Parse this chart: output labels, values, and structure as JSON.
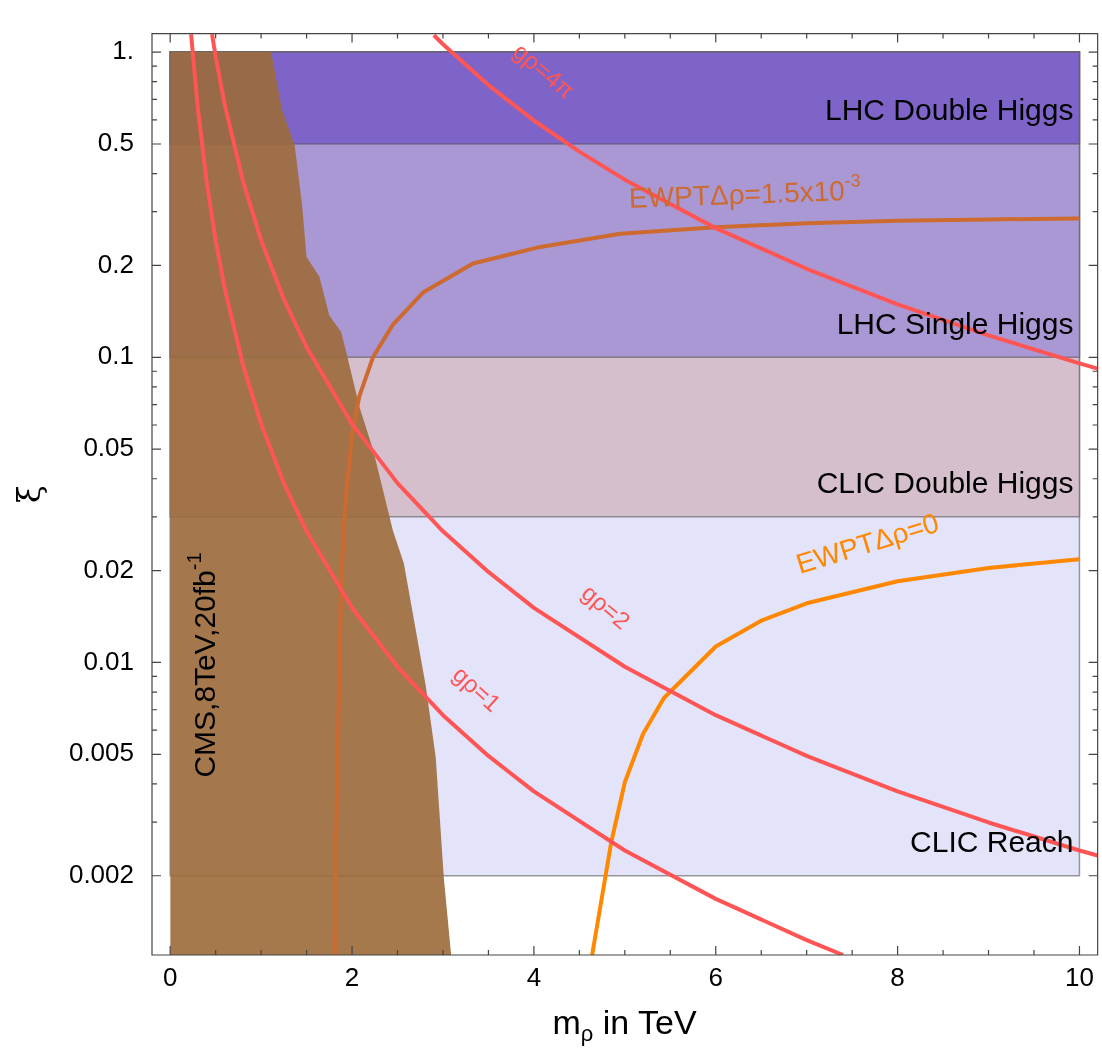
{
  "chart_data": {
    "type": "line",
    "xlabel": "m$_{ρ}$ in TeV",
    "ylabel": "ξ",
    "log": true,
    "marker": "none",
    "xlim": [
      -0.2,
      10.2
    ],
    "ylim": [
      0.0011,
      1.15
    ],
    "xticks": [
      0,
      {
        "value": 0.5,
        "label": null
      },
      {
        "value": 1,
        "label": null
      },
      {
        "value": 1.5,
        "label": null
      },
      2,
      {
        "value": 2.5,
        "label": null
      },
      {
        "value": 3,
        "label": null
      },
      {
        "value": 3.5,
        "label": null
      },
      4,
      {
        "value": 4.5,
        "label": null
      },
      {
        "value": 5,
        "label": null
      },
      {
        "value": 5.5,
        "label": null
      },
      6,
      {
        "value": 6.5,
        "label": null
      },
      {
        "value": 7,
        "label": null
      },
      {
        "value": 7.5,
        "label": null
      },
      8,
      {
        "value": 8.5,
        "label": null
      },
      {
        "value": 9,
        "label": null
      },
      {
        "value": 9.5,
        "label": null
      },
      10
    ],
    "yticks": [
      0.002,
      {
        "value": 0.003,
        "label": null
      },
      {
        "value": 0.004,
        "label": null
      },
      0.005,
      {
        "value": 0.006,
        "label": null
      },
      {
        "value": 0.007,
        "label": null
      },
      {
        "value": 0.008,
        "label": null
      },
      {
        "value": 0.009,
        "label": null
      },
      0.01,
      0.02,
      {
        "value": 0.03,
        "label": null
      },
      {
        "value": 0.04,
        "label": null
      },
      0.05,
      {
        "value": 0.06,
        "label": null
      },
      {
        "value": 0.07,
        "label": null
      },
      {
        "value": 0.08,
        "label": null
      },
      {
        "value": 0.09,
        "label": null
      },
      0.1,
      0.2,
      {
        "value": 0.3,
        "label": null
      },
      {
        "value": 0.4,
        "label": null
      },
      0.5,
      {
        "value": 0.6,
        "label": null
      },
      {
        "value": 0.7,
        "label": null
      },
      {
        "value": 0.8,
        "label": null
      },
      {
        "value": 0.9,
        "label": null
      },
      {
        "value": 1,
        "label": "1."
      }
    ],
    "bands": [
      {
        "axis": "y",
        "from": 0.002,
        "to": 1,
        "label": "CLIC Reach",
        "color": "#e3e3fa"
      },
      {
        "axis": "y",
        "from": 0.03,
        "to": 1,
        "label": "CLIC Double Higgs",
        "color": "#d6bfcc"
      },
      {
        "axis": "y",
        "from": 0.1,
        "to": 1,
        "label": "LHC Single Higgs",
        "color": "#aa98d4"
      },
      {
        "axis": "y",
        "from": 0.5,
        "to": 1,
        "label": "LHC Double Higgs",
        "color": "#7e64c8"
      }
    ],
    "series": [
      {
        "name": "CMS,8TeV,20fb$^{-1}$",
        "type": "area",
        "color": "#9c6a3a",
        "x": [
          0,
          1.11,
          1.23,
          1.37,
          1.45,
          1.5,
          1.64,
          1.75,
          1.88,
          1.95,
          2.08,
          2.23,
          2.45,
          2.57,
          2.81,
          2.92,
          3.01,
          3.09
        ],
        "values": [
          1,
          1,
          0.647,
          0.493,
          0.316,
          0.213,
          0.184,
          0.137,
          0.121,
          0.1,
          0.069,
          0.05,
          0.027,
          0.0211,
          0.0084,
          0.0049,
          0.00196,
          0.0011
        ]
      },
      {
        "name": "gρ=1",
        "color": "#ff5555",
        "x": [
          0.23,
          0.3,
          0.4,
          0.5,
          0.6,
          0.8,
          1,
          1.25,
          1.5,
          2,
          2.5,
          3,
          3.5,
          4,
          5,
          6,
          7,
          7.4
        ],
        "values": [
          1.144,
          0.672,
          0.378,
          0.242,
          0.168,
          0.0945,
          0.0605,
          0.0387,
          0.0269,
          0.0151,
          0.00968,
          0.00672,
          0.00494,
          0.00378,
          0.00242,
          0.00168,
          0.00123,
          0.0011
        ]
      },
      {
        "name": "gρ=2",
        "color": "#ff5555",
        "x": [
          0.46,
          0.5,
          0.6,
          0.8,
          1,
          1.25,
          1.5,
          2,
          2.5,
          3,
          3.5,
          4,
          5,
          6,
          7,
          8,
          9,
          10,
          10.2
        ],
        "values": [
          1.144,
          0.968,
          0.672,
          0.378,
          0.242,
          0.155,
          0.108,
          0.0605,
          0.0387,
          0.0269,
          0.0198,
          0.0151,
          0.00968,
          0.00672,
          0.00494,
          0.00378,
          0.00299,
          0.00242,
          0.00233
        ]
      },
      {
        "name": "gρ=4π",
        "color": "#ff5555",
        "x": [
          2.9,
          3,
          3.5,
          4,
          4.5,
          5,
          6,
          7,
          8,
          9,
          10,
          10.2
        ],
        "values": [
          1.136,
          1.061,
          0.78,
          0.597,
          0.472,
          0.382,
          0.265,
          0.195,
          0.149,
          0.118,
          0.0955,
          0.0918
        ]
      },
      {
        "name": "EWPTΔρ=1.5x10$^{-3}$",
        "color": "#cc6a30",
        "x": [
          1.81,
          1.82,
          1.85,
          1.88,
          1.92,
          2,
          2.08,
          2.23,
          2.45,
          2.78,
          3.33,
          4.07,
          4.95,
          6,
          7,
          8,
          9,
          10
        ],
        "values": [
          0.0011,
          0.0023,
          0.0065,
          0.0186,
          0.0314,
          0.056,
          0.0745,
          0.1,
          0.128,
          0.163,
          0.203,
          0.23,
          0.254,
          0.267,
          0.275,
          0.28,
          0.283,
          0.285
        ]
      },
      {
        "name": "EWPTΔρ=0",
        "color": "#ff8800",
        "x": [
          4.64,
          4.73,
          4.85,
          5,
          5.2,
          5.43,
          6,
          6.5,
          7,
          8,
          9,
          10
        ],
        "values": [
          0.0011,
          0.00158,
          0.00257,
          0.00405,
          0.00583,
          0.00765,
          0.01128,
          0.0137,
          0.01563,
          0.01846,
          0.0204,
          0.0218
        ]
      }
    ]
  }
}
